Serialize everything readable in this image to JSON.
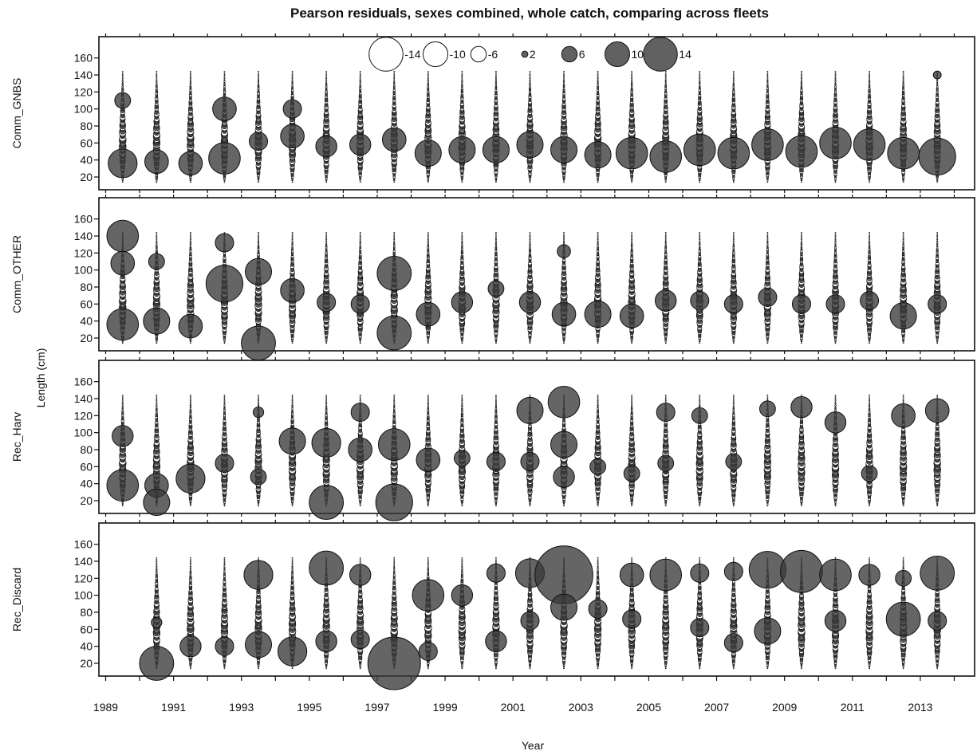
{
  "chart_data": {
    "type": "scatter",
    "subtype": "bubble-residuals",
    "title": "Pearson residuals, sexes combined, whole catch, comparing across fleets",
    "xlabel": "Year",
    "ylabel": "Length (cm)",
    "xlim": [
      1988.8,
      2014.6
    ],
    "x_ticks": [
      1989,
      1991,
      1993,
      1995,
      1997,
      1999,
      2001,
      2003,
      2005,
      2007,
      2009,
      2011,
      2013
    ],
    "ylim": [
      5,
      185
    ],
    "y_ticks": [
      20,
      40,
      60,
      80,
      100,
      120,
      140,
      160
    ],
    "grid": false,
    "legend": {
      "placement": "top-center",
      "entries": [
        {
          "label": "-14",
          "value": -14
        },
        {
          "label": "-10",
          "value": -10
        },
        {
          "label": "-6",
          "value": -6
        },
        {
          "label": "2",
          "value": 2
        },
        {
          "label": "6",
          "value": 6
        },
        {
          "label": "10",
          "value": 10
        },
        {
          "label": "14",
          "value": 14
        }
      ]
    },
    "colors": {
      "positive": "#3a3a3a",
      "negative": "#ffffff",
      "outline": "#111111"
    },
    "panels": [
      {
        "name": "Comm_GNBS",
        "years": [
          1989,
          1990,
          1991,
          1992,
          1993,
          1994,
          1995,
          1996,
          1997,
          1998,
          1999,
          2000,
          2001,
          2002,
          2003,
          2004,
          2005,
          2006,
          2007,
          2008,
          2009,
          2010,
          2011,
          2012,
          2013
        ],
        "length_range": [
          14,
          144
        ],
        "highlights": [
          {
            "x": 1989,
            "y": 36,
            "r": 5.5
          },
          {
            "x": 1989,
            "y": 110,
            "r": 3
          },
          {
            "x": 1990,
            "y": 38,
            "r": 4.5
          },
          {
            "x": 1991,
            "y": 36,
            "r": 4.5
          },
          {
            "x": 1992,
            "y": 42,
            "r": 6
          },
          {
            "x": 1992,
            "y": 100,
            "r": 4.5
          },
          {
            "x": 1993,
            "y": 62,
            "r": 3.5
          },
          {
            "x": 1994,
            "y": 68,
            "r": 4.5
          },
          {
            "x": 1994,
            "y": 100,
            "r": 3.5
          },
          {
            "x": 1995,
            "y": 56,
            "r": 4
          },
          {
            "x": 1996,
            "y": 58,
            "r": 4
          },
          {
            "x": 1997,
            "y": 64,
            "r": 4.5
          },
          {
            "x": 1998,
            "y": 48,
            "r": 5
          },
          {
            "x": 1999,
            "y": 52,
            "r": 5
          },
          {
            "x": 2000,
            "y": 52,
            "r": 5
          },
          {
            "x": 2001,
            "y": 58,
            "r": 5
          },
          {
            "x": 2002,
            "y": 52,
            "r": 5
          },
          {
            "x": 2003,
            "y": 46,
            "r": 5
          },
          {
            "x": 2004,
            "y": 48,
            "r": 6
          },
          {
            "x": 2005,
            "y": 44,
            "r": 6
          },
          {
            "x": 2006,
            "y": 52,
            "r": 6
          },
          {
            "x": 2007,
            "y": 48,
            "r": 6
          },
          {
            "x": 2008,
            "y": 58,
            "r": 6
          },
          {
            "x": 2009,
            "y": 50,
            "r": 6
          },
          {
            "x": 2010,
            "y": 60,
            "r": 6
          },
          {
            "x": 2011,
            "y": 58,
            "r": 6
          },
          {
            "x": 2012,
            "y": 48,
            "r": 6
          },
          {
            "x": 2013,
            "y": 44,
            "r": 7
          },
          {
            "x": 2013,
            "y": 140,
            "r": 1.5
          }
        ]
      },
      {
        "name": "Comm_OTHER",
        "years": [
          1989,
          1990,
          1991,
          1992,
          1993,
          1994,
          1995,
          1996,
          1997,
          1998,
          1999,
          2000,
          2001,
          2002,
          2003,
          2004,
          2005,
          2006,
          2007,
          2008,
          2009,
          2010,
          2011,
          2012,
          2013
        ],
        "length_range": [
          14,
          144
        ],
        "highlights": [
          {
            "x": 1989,
            "y": 140,
            "r": 6
          },
          {
            "x": 1989,
            "y": 108,
            "r": 4.5
          },
          {
            "x": 1989,
            "y": 36,
            "r": 6
          },
          {
            "x": 1990,
            "y": 40,
            "r": 5
          },
          {
            "x": 1990,
            "y": 110,
            "r": 3
          },
          {
            "x": 1991,
            "y": 34,
            "r": 4.5
          },
          {
            "x": 1992,
            "y": 84,
            "r": 7
          },
          {
            "x": 1992,
            "y": 132,
            "r": 3.5
          },
          {
            "x": 1993,
            "y": 98,
            "r": 5
          },
          {
            "x": 1993,
            "y": 14,
            "r": 6.5
          },
          {
            "x": 1994,
            "y": 76,
            "r": 4.5
          },
          {
            "x": 1995,
            "y": 62,
            "r": 3.5
          },
          {
            "x": 1996,
            "y": 60,
            "r": 3.5
          },
          {
            "x": 1997,
            "y": 96,
            "r": 6.5
          },
          {
            "x": 1997,
            "y": 26,
            "r": 6.5
          },
          {
            "x": 1998,
            "y": 48,
            "r": 4.5
          },
          {
            "x": 1999,
            "y": 62,
            "r": 4
          },
          {
            "x": 2000,
            "y": 78,
            "r": 3
          },
          {
            "x": 2001,
            "y": 62,
            "r": 4
          },
          {
            "x": 2002,
            "y": 48,
            "r": 4.5
          },
          {
            "x": 2002,
            "y": 122,
            "r": 2.5
          },
          {
            "x": 2003,
            "y": 48,
            "r": 5
          },
          {
            "x": 2004,
            "y": 46,
            "r": 4.5
          },
          {
            "x": 2005,
            "y": 64,
            "r": 4
          },
          {
            "x": 2006,
            "y": 64,
            "r": 3.5
          },
          {
            "x": 2007,
            "y": 60,
            "r": 3.5
          },
          {
            "x": 2008,
            "y": 68,
            "r": 3.5
          },
          {
            "x": 2009,
            "y": 60,
            "r": 3.5
          },
          {
            "x": 2010,
            "y": 60,
            "r": 3.5
          },
          {
            "x": 2011,
            "y": 64,
            "r": 3.5
          },
          {
            "x": 2012,
            "y": 46,
            "r": 5
          },
          {
            "x": 2013,
            "y": 60,
            "r": 3.5
          }
        ]
      },
      {
        "name": "Rec_Harv",
        "years": [
          1989,
          1990,
          1991,
          1992,
          1993,
          1994,
          1995,
          1996,
          1997,
          1998,
          1999,
          2000,
          2001,
          2002,
          2003,
          2004,
          2005,
          2006,
          2007,
          2008,
          2009,
          2010,
          2011,
          2012,
          2013
        ],
        "length_range": [
          14,
          144
        ],
        "highlights": [
          {
            "x": 1989,
            "y": 38,
            "r": 6
          },
          {
            "x": 1989,
            "y": 96,
            "r": 4
          },
          {
            "x": 1990,
            "y": 38,
            "r": 4.5
          },
          {
            "x": 1990,
            "y": 18,
            "r": 5
          },
          {
            "x": 1991,
            "y": 46,
            "r": 5.5
          },
          {
            "x": 1992,
            "y": 64,
            "r": 3.5
          },
          {
            "x": 1993,
            "y": 48,
            "r": 3
          },
          {
            "x": 1993,
            "y": 124,
            "r": 2
          },
          {
            "x": 1994,
            "y": 90,
            "r": 5
          },
          {
            "x": 1995,
            "y": 88,
            "r": 5.5
          },
          {
            "x": 1995,
            "y": 18,
            "r": 6.5
          },
          {
            "x": 1996,
            "y": 80,
            "r": 4.5
          },
          {
            "x": 1996,
            "y": 124,
            "r": 3.5
          },
          {
            "x": 1997,
            "y": 86,
            "r": 6
          },
          {
            "x": 1997,
            "y": 18,
            "r": 7
          },
          {
            "x": 1998,
            "y": 68,
            "r": 4.5
          },
          {
            "x": 1999,
            "y": 70,
            "r": 3
          },
          {
            "x": 2000,
            "y": 66,
            "r": 3.5
          },
          {
            "x": 2001,
            "y": 126,
            "r": 5
          },
          {
            "x": 2001,
            "y": 66,
            "r": 3.5
          },
          {
            "x": 2002,
            "y": 136,
            "r": 6
          },
          {
            "x": 2002,
            "y": 86,
            "r": 5
          },
          {
            "x": 2002,
            "y": 48,
            "r": 4
          },
          {
            "x": 2003,
            "y": 60,
            "r": 3
          },
          {
            "x": 2004,
            "y": 52,
            "r": 3
          },
          {
            "x": 2005,
            "y": 124,
            "r": 3.5
          },
          {
            "x": 2005,
            "y": 64,
            "r": 3
          },
          {
            "x": 2006,
            "y": 120,
            "r": 3
          },
          {
            "x": 2007,
            "y": 66,
            "r": 3
          },
          {
            "x": 2008,
            "y": 128,
            "r": 3
          },
          {
            "x": 2009,
            "y": 130,
            "r": 4
          },
          {
            "x": 2010,
            "y": 112,
            "r": 4
          },
          {
            "x": 2011,
            "y": 52,
            "r": 3
          },
          {
            "x": 2012,
            "y": 120,
            "r": 4.5
          },
          {
            "x": 2013,
            "y": 126,
            "r": 4.5
          }
        ]
      },
      {
        "name": "Rec_Discard",
        "years": [
          1990,
          1991,
          1992,
          1993,
          1994,
          1995,
          1996,
          1997,
          1998,
          1999,
          2000,
          2001,
          2002,
          2003,
          2004,
          2005,
          2006,
          2007,
          2008,
          2009,
          2010,
          2011,
          2012,
          2013
        ],
        "length_range": [
          14,
          144
        ],
        "highlights": [
          {
            "x": 1990,
            "y": 20,
            "r": 6.5
          },
          {
            "x": 1990,
            "y": 68,
            "r": 2
          },
          {
            "x": 1991,
            "y": 40,
            "r": 4
          },
          {
            "x": 1992,
            "y": 40,
            "r": 3.5
          },
          {
            "x": 1993,
            "y": 124,
            "r": 5.5
          },
          {
            "x": 1993,
            "y": 42,
            "r": 5
          },
          {
            "x": 1994,
            "y": 34,
            "r": 5.5
          },
          {
            "x": 1995,
            "y": 132,
            "r": 6.5
          },
          {
            "x": 1995,
            "y": 46,
            "r": 4
          },
          {
            "x": 1996,
            "y": 124,
            "r": 4
          },
          {
            "x": 1996,
            "y": 48,
            "r": 3.5
          },
          {
            "x": 1997,
            "y": 20,
            "r": 10
          },
          {
            "x": 1998,
            "y": 100,
            "r": 6
          },
          {
            "x": 1998,
            "y": 34,
            "r": 3.5
          },
          {
            "x": 1999,
            "y": 100,
            "r": 4
          },
          {
            "x": 2000,
            "y": 126,
            "r": 3.5
          },
          {
            "x": 2000,
            "y": 46,
            "r": 4
          },
          {
            "x": 2001,
            "y": 126,
            "r": 5.5
          },
          {
            "x": 2001,
            "y": 70,
            "r": 3.5
          },
          {
            "x": 2002,
            "y": 124,
            "r": 11
          },
          {
            "x": 2002,
            "y": 86,
            "r": 5
          },
          {
            "x": 2003,
            "y": 84,
            "r": 3.5
          },
          {
            "x": 2004,
            "y": 124,
            "r": 4.5
          },
          {
            "x": 2004,
            "y": 72,
            "r": 3.5
          },
          {
            "x": 2005,
            "y": 124,
            "r": 6
          },
          {
            "x": 2006,
            "y": 126,
            "r": 3.5
          },
          {
            "x": 2006,
            "y": 62,
            "r": 3.5
          },
          {
            "x": 2007,
            "y": 128,
            "r": 3.5
          },
          {
            "x": 2007,
            "y": 44,
            "r": 3.5
          },
          {
            "x": 2008,
            "y": 130,
            "r": 7
          },
          {
            "x": 2008,
            "y": 58,
            "r": 5
          },
          {
            "x": 2009,
            "y": 128,
            "r": 8
          },
          {
            "x": 2010,
            "y": 124,
            "r": 6
          },
          {
            "x": 2010,
            "y": 70,
            "r": 4
          },
          {
            "x": 2011,
            "y": 124,
            "r": 4
          },
          {
            "x": 2012,
            "y": 72,
            "r": 6.5
          },
          {
            "x": 2012,
            "y": 120,
            "r": 3
          },
          {
            "x": 2013,
            "y": 126,
            "r": 6.5
          },
          {
            "x": 2013,
            "y": 70,
            "r": 3.5
          }
        ]
      }
    ]
  }
}
